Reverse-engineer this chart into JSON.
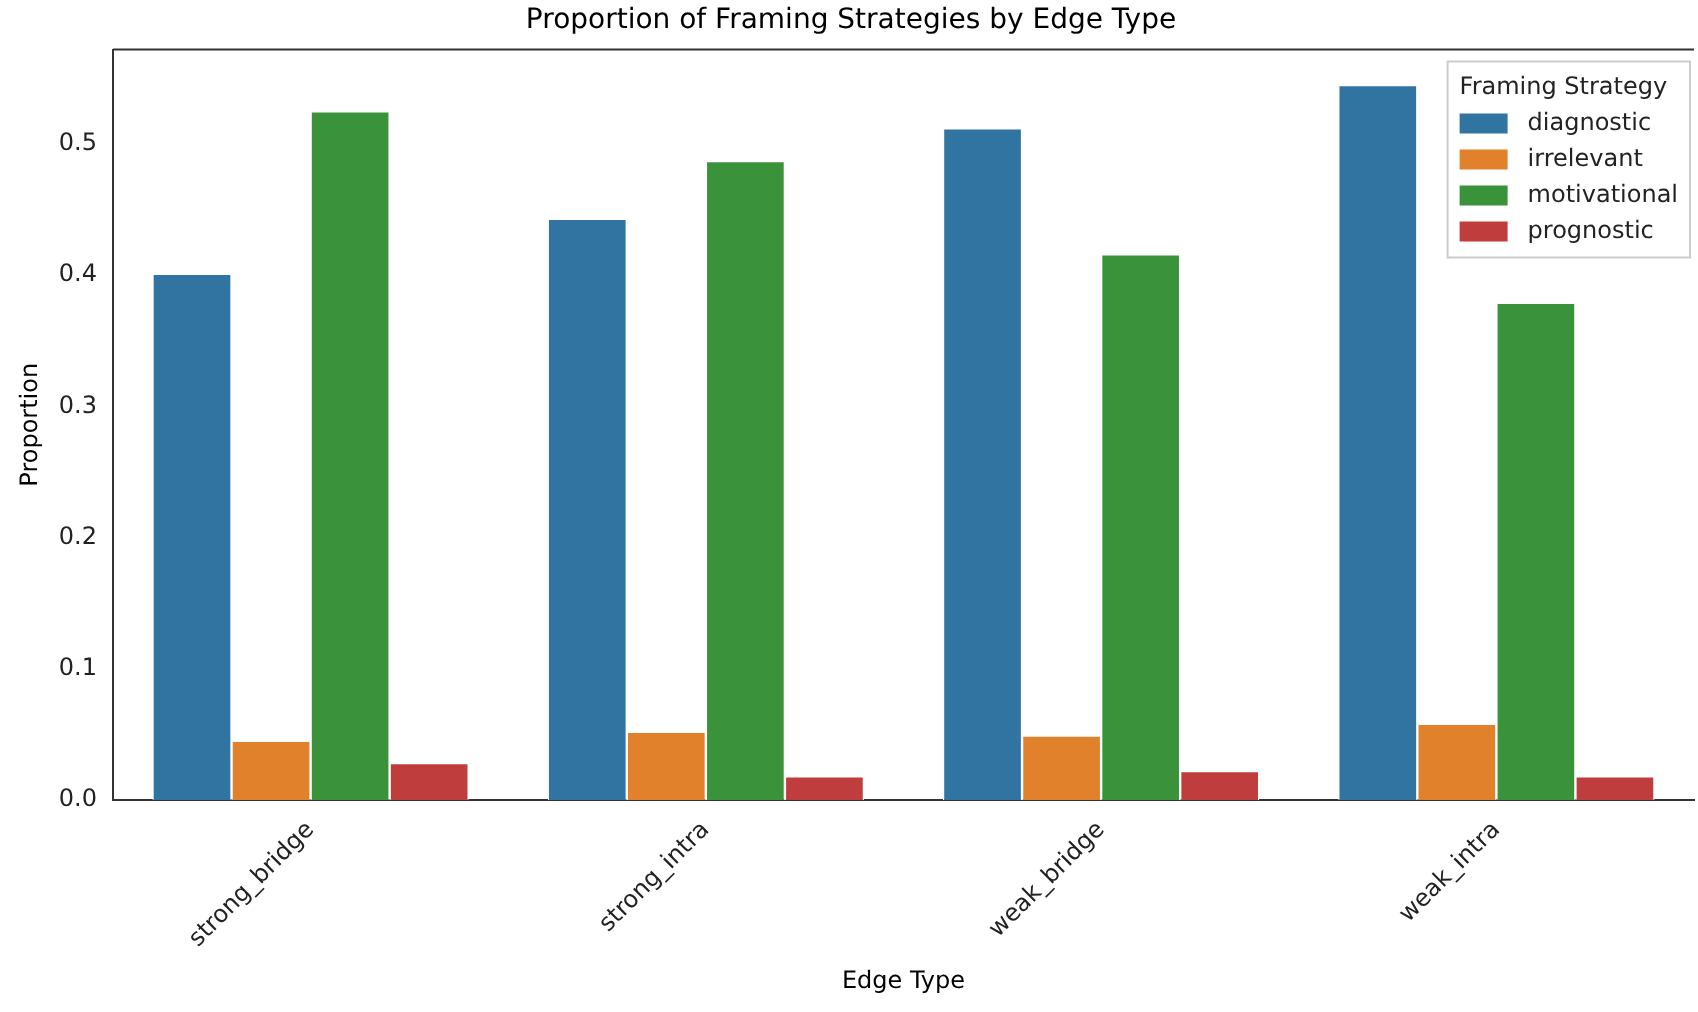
{
  "chart_data": {
    "type": "bar",
    "title": "Proportion of Framing Strategies by Edge Type",
    "xlabel": "Edge Type",
    "ylabel": "Proportion",
    "legend_title": "Framing Strategy",
    "categories": [
      "strong_bridge",
      "strong_intra",
      "weak_bridge",
      "weak_intra"
    ],
    "series": [
      {
        "name": "diagnostic",
        "color": "#3274a1",
        "values": [
          0.401,
          0.443,
          0.512,
          0.545
        ]
      },
      {
        "name": "irrelevant",
        "color": "#e1812c",
        "values": [
          0.045,
          0.052,
          0.049,
          0.058
        ]
      },
      {
        "name": "motivational",
        "color": "#3a923a",
        "values": [
          0.525,
          0.487,
          0.416,
          0.379
        ]
      },
      {
        "name": "prognostic",
        "color": "#c03d3e",
        "values": [
          0.028,
          0.018,
          0.022,
          0.018
        ]
      }
    ],
    "ylim": [
      0,
      0.572
    ],
    "yticks": [
      {
        "value": 0,
        "label": "0.0"
      },
      {
        "value": 0.1,
        "label": "0.1"
      },
      {
        "value": 0.2,
        "label": "0.2"
      },
      {
        "value": 0.3,
        "label": "0.3"
      },
      {
        "value": 0.4,
        "label": "0.4"
      },
      {
        "value": 0.5,
        "label": "0.5"
      }
    ],
    "grid": false,
    "legend": "top right"
  }
}
